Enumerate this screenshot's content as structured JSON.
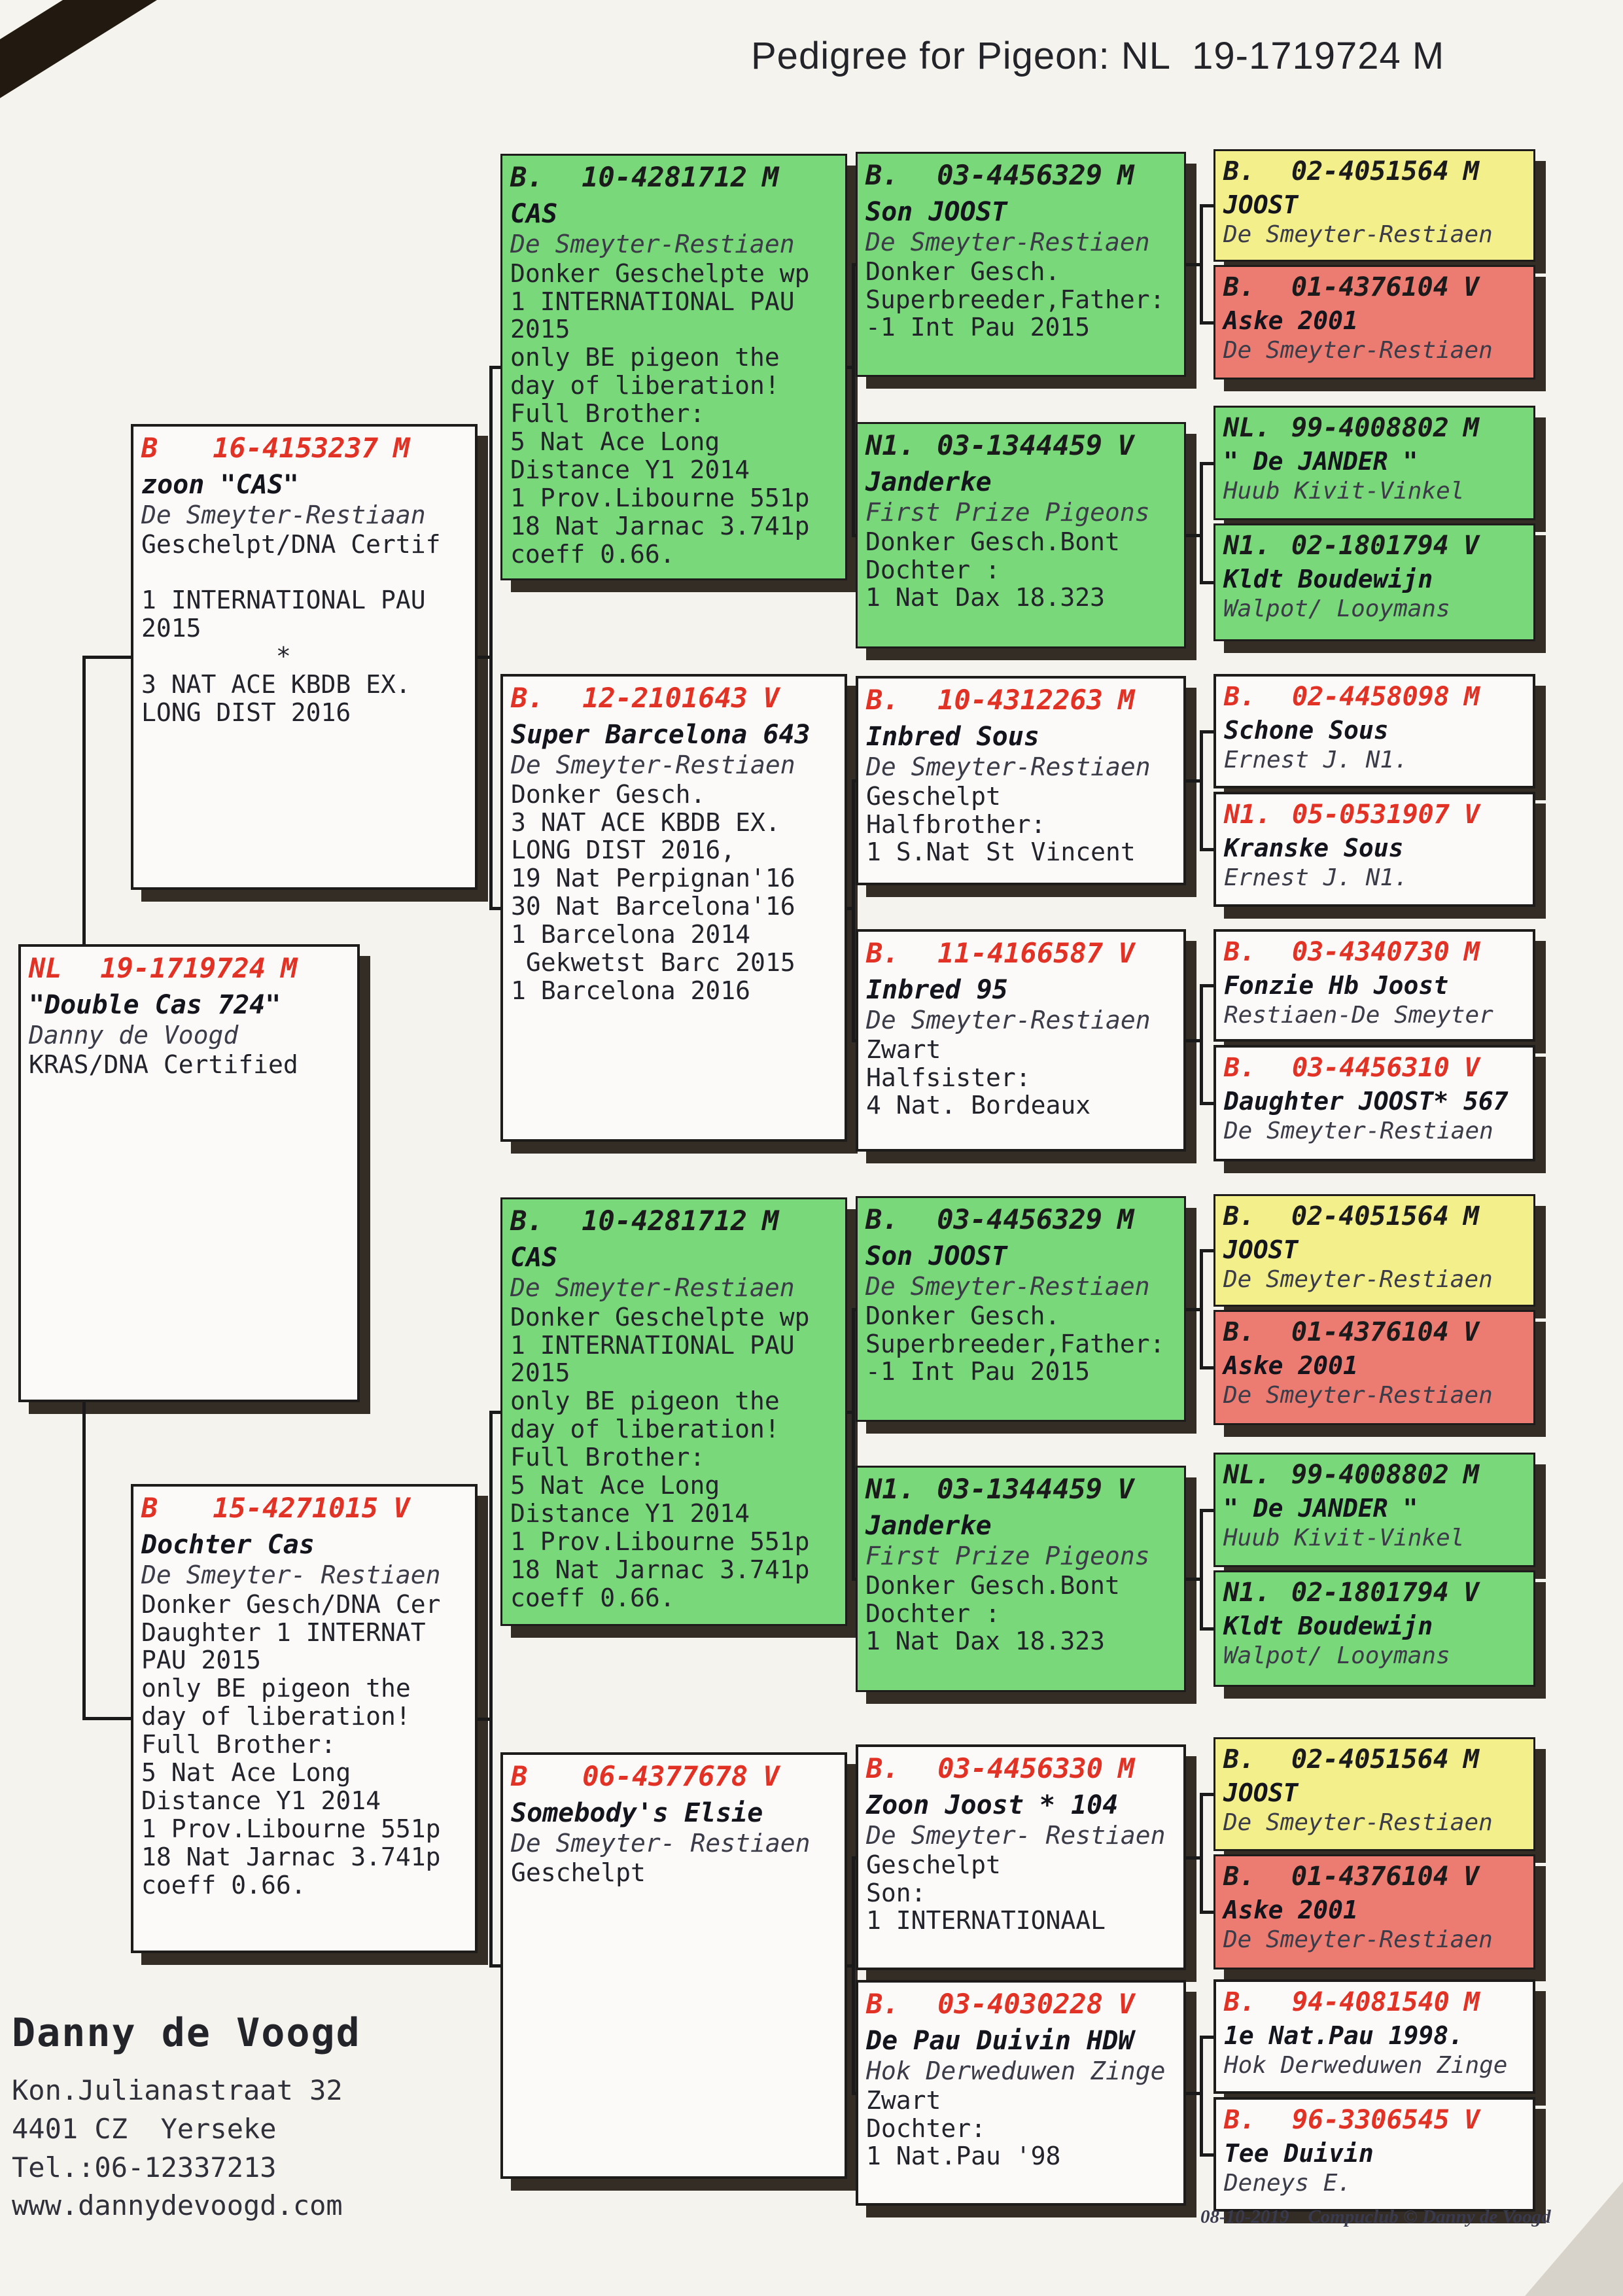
{
  "title": "Pedigree for Pigeon: NL  19-1719724 M",
  "colors": {
    "box_green": "#79d879",
    "box_yellow": "#f3ef8b",
    "box_red": "#ec7b72",
    "ring_number_red": "#e23125"
  },
  "boxes": [
    {
      "id": "subject",
      "color": "white",
      "ring": {
        "cc": "NL",
        "num": "19-1719724",
        "sex": "M"
      },
      "name": "\"Double Cas 724\"",
      "breeder": "Danny de Voogd",
      "body": "KRAS/DNA Certified"
    },
    {
      "id": "father",
      "color": "white",
      "ring": {
        "cc": "B",
        "num": "16-4153237",
        "sex": "M"
      },
      "name": "zoon \"CAS\"",
      "breeder": "De Smeyter-Restiaan",
      "body": "Geschelpt/DNA Certif\n\n1 INTERNATIONAL PAU\n2015\n         *\n3 NAT ACE KBDB EX.\nLONG DIST 2016"
    },
    {
      "id": "mother",
      "color": "white",
      "ring": {
        "cc": "B",
        "num": "15-4271015",
        "sex": "V"
      },
      "name": "Dochter Cas",
      "breeder": "De Smeyter- Restiaen",
      "body": "Donker Gesch/DNA Cer\nDaughter 1 INTERNAT\nPAU 2015\nonly BE pigeon the\nday of liberation!\nFull Brother:\n5 Nat Ace Long\nDistance Y1 2014\n1 Prov.Libourne 551p\n18 Nat Jarnac 3.741p\ncoeff 0.66."
    },
    {
      "id": "cas1",
      "color": "green",
      "ring": {
        "cc": "B.",
        "num": "10-4281712",
        "sex": "M"
      },
      "name": "CAS",
      "breeder": "De Smeyter-Restiaen",
      "body": "Donker Geschelpte wp\n1 INTERNATIONAL PAU\n2015\nonly BE pigeon the\nday of liberation!\nFull Brother:\n5 Nat Ace Long\nDistance Y1 2014\n1 Prov.Libourne 551p\n18 Nat Jarnac 3.741p\ncoeff 0.66."
    },
    {
      "id": "superbarc",
      "color": "white",
      "ring": {
        "cc": "B.",
        "num": "12-2101643",
        "sex": "V"
      },
      "name": "Super Barcelona 643",
      "breeder": "De Smeyter-Restiaen",
      "body": "Donker Gesch.\n3 NAT ACE KBDB EX.\nLONG DIST 2016,\n19 Nat Perpignan'16\n30 Nat Barcelona'16\n1 Barcelona 2014\n Gekwetst Barc 2015\n1 Barcelona 2016"
    },
    {
      "id": "cas2",
      "color": "green",
      "ring": {
        "cc": "B.",
        "num": "10-4281712",
        "sex": "M"
      },
      "name": "CAS",
      "breeder": "De Smeyter-Restiaen",
      "body": "Donker Geschelpte wp\n1 INTERNATIONAL PAU\n2015\nonly BE pigeon the\nday of liberation!\nFull Brother:\n5 Nat Ace Long\nDistance Y1 2014\n1 Prov.Libourne 551p\n18 Nat Jarnac 3.741p\ncoeff 0.66."
    },
    {
      "id": "elsie",
      "color": "white",
      "ring": {
        "cc": "B",
        "num": "06-4377678",
        "sex": "V"
      },
      "name": "Somebody's Elsie",
      "breeder": "De Smeyter- Restiaen",
      "body": "Geschelpt"
    },
    {
      "id": "sonjoost1",
      "color": "green",
      "ring": {
        "cc": "B.",
        "num": "03-4456329",
        "sex": "M"
      },
      "name": "Son JOOST",
      "breeder": "De Smeyter-Restiaen",
      "body": "Donker Gesch.\nSuperbreeder,Father:\n-1 Int Pau 2015"
    },
    {
      "id": "janderke1",
      "color": "green",
      "ring": {
        "cc": "N1.",
        "num": "03-1344459",
        "sex": "V"
      },
      "name": "Janderke",
      "breeder": "First Prize Pigeons",
      "body": "Donker Gesch.Bont\nDochter :\n1 Nat Dax 18.323"
    },
    {
      "id": "inbredsous",
      "color": "white",
      "ring": {
        "cc": "B.",
        "num": "10-4312263",
        "sex": "M"
      },
      "name": "Inbred Sous",
      "breeder": "De Smeyter-Restiaen",
      "body": "Geschelpt\nHalfbrother:\n1 S.Nat St Vincent"
    },
    {
      "id": "inbred95",
      "color": "white",
      "ring": {
        "cc": "B.",
        "num": "11-4166587",
        "sex": "V"
      },
      "name": "Inbred 95",
      "breeder": "De Smeyter-Restiaen",
      "body": "Zwart\nHalfsister:\n4 Nat. Bordeaux"
    },
    {
      "id": "sonjoost2",
      "color": "green",
      "ring": {
        "cc": "B.",
        "num": "03-4456329",
        "sex": "M"
      },
      "name": "Son JOOST",
      "breeder": "De Smeyter-Restiaen",
      "body": "Donker Gesch.\nSuperbreeder,Father:\n-1 Int Pau 2015"
    },
    {
      "id": "janderke2",
      "color": "green",
      "ring": {
        "cc": "N1.",
        "num": "03-1344459",
        "sex": "V"
      },
      "name": "Janderke",
      "breeder": "First Prize Pigeons",
      "body": "Donker Gesch.Bont\nDochter :\n1 Nat Dax 18.323"
    },
    {
      "id": "zoonjoost",
      "color": "white",
      "ring": {
        "cc": "B.",
        "num": "03-4456330",
        "sex": "M"
      },
      "name": "Zoon Joost * 104",
      "breeder": "De Smeyter- Restiaen",
      "body": "Geschelpt\nSon:\n1 INTERNATIONAAL"
    },
    {
      "id": "depau",
      "color": "white",
      "ring": {
        "cc": "B.",
        "num": "03-4030228",
        "sex": "V"
      },
      "name": "De Pau Duivin HDW",
      "breeder": "Hok Derweduwen Zinge",
      "body": "Zwart\nDochter:\n1 Nat.Pau '98"
    },
    {
      "id": "joost1",
      "color": "yellow",
      "ring": {
        "cc": "B.",
        "num": "02-4051564",
        "sex": "M"
      },
      "name": "JOOST",
      "breeder": "De Smeyter-Restiaen",
      "body": ""
    },
    {
      "id": "aske1",
      "color": "red",
      "ring": {
        "cc": "B.",
        "num": "01-4376104",
        "sex": "V"
      },
      "name": "Aske 2001",
      "breeder": "De Smeyter-Restiaen",
      "body": ""
    },
    {
      "id": "jander1",
      "color": "green",
      "ring": {
        "cc": "NL.",
        "num": "99-4008802",
        "sex": "M"
      },
      "name": "\" De JANDER \"",
      "breeder": "Huub Kivit-Vinkel",
      "body": ""
    },
    {
      "id": "kldt1",
      "color": "green",
      "ring": {
        "cc": "N1.",
        "num": "02-1801794",
        "sex": "V"
      },
      "name": "Kldt Boudewijn",
      "breeder": "Walpot/ Looymans",
      "body": ""
    },
    {
      "id": "schone",
      "color": "white",
      "ring": {
        "cc": "B.",
        "num": "02-4458098",
        "sex": "M"
      },
      "name": "Schone Sous",
      "breeder": "Ernest J. N1.",
      "body": ""
    },
    {
      "id": "kranske",
      "color": "white",
      "ring": {
        "cc": "N1.",
        "num": "05-0531907",
        "sex": "V"
      },
      "name": "Kranske Sous",
      "breeder": "Ernest J. N1.",
      "body": ""
    },
    {
      "id": "fonzie",
      "color": "white",
      "ring": {
        "cc": "B.",
        "num": "03-4340730",
        "sex": "M"
      },
      "name": "Fonzie Hb Joost",
      "breeder": "Restiaen-De Smeyter",
      "body": ""
    },
    {
      "id": "d567",
      "color": "white",
      "ring": {
        "cc": "B.",
        "num": "03-4456310",
        "sex": "V"
      },
      "name": "Daughter JOOST* 567",
      "breeder": "De Smeyter-Restiaen",
      "body": ""
    },
    {
      "id": "joost2",
      "color": "yellow",
      "ring": {
        "cc": "B.",
        "num": "02-4051564",
        "sex": "M"
      },
      "name": "JOOST",
      "breeder": "De Smeyter-Restiaen",
      "body": ""
    },
    {
      "id": "aske2",
      "color": "red",
      "ring": {
        "cc": "B.",
        "num": "01-4376104",
        "sex": "V"
      },
      "name": "Aske 2001",
      "breeder": "De Smeyter-Restiaen",
      "body": ""
    },
    {
      "id": "jander2",
      "color": "green",
      "ring": {
        "cc": "NL.",
        "num": "99-4008802",
        "sex": "M"
      },
      "name": "\" De JANDER \"",
      "breeder": "Huub Kivit-Vinkel",
      "body": ""
    },
    {
      "id": "kldt2",
      "color": "green",
      "ring": {
        "cc": "N1.",
        "num": "02-1801794",
        "sex": "V"
      },
      "name": "Kldt Boudewijn",
      "breeder": "Walpot/ Looymans",
      "body": ""
    },
    {
      "id": "joost3",
      "color": "yellow",
      "ring": {
        "cc": "B.",
        "num": "02-4051564",
        "sex": "M"
      },
      "name": "JOOST",
      "breeder": "De Smeyter-Restiaen",
      "body": ""
    },
    {
      "id": "aske3",
      "color": "red",
      "ring": {
        "cc": "B.",
        "num": "01-4376104",
        "sex": "V"
      },
      "name": "Aske 2001",
      "breeder": "De Smeyter-Restiaen",
      "body": ""
    },
    {
      "id": "natpau",
      "color": "white",
      "ring": {
        "cc": "B.",
        "num": "94-4081540",
        "sex": "M"
      },
      "name": "1e Nat.Pau 1998.",
      "breeder": "Hok Derweduwen Zinge",
      "body": ""
    },
    {
      "id": "tee",
      "color": "white",
      "ring": {
        "cc": "B.",
        "num": "96-3306545",
        "sex": "V"
      },
      "name": "Tee Duivin",
      "breeder": "Deneys E.",
      "body": ""
    }
  ],
  "footer": {
    "name": "Danny de Voogd",
    "address_line1": "Kon.Julianastraat 32",
    "address_line2": "4401 CZ  Yerseke",
    "phone": "Tel.:06-12337213",
    "website": "www.dannydevoogd.com",
    "print_info": "08-10-2019    Compuclub © Danny de Voogd"
  }
}
